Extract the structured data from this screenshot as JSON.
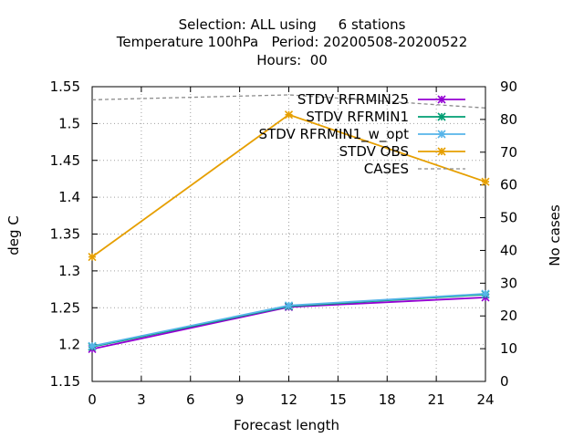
{
  "chart_data": {
    "type": "line",
    "title_lines": [
      "Selection: ALL using     6 stations",
      "Temperature 100hPa   Period: 20200508-20200522",
      "Hours:  00"
    ],
    "xlabel": "Forecast length",
    "ylabel": "deg C",
    "y2label": "No cases",
    "x": [
      0,
      12,
      24
    ],
    "xticks": [
      0,
      3,
      6,
      9,
      12,
      15,
      18,
      21,
      24
    ],
    "xlim": [
      0,
      24
    ],
    "ylim": [
      1.15,
      1.55
    ],
    "yticks": [
      "1.15",
      "1.2",
      "1.25",
      "1.3",
      "1.35",
      "1.4",
      "1.45",
      "1.5",
      "1.55"
    ],
    "y2lim": [
      0,
      90
    ],
    "y2ticks": [
      "0",
      "10",
      "20",
      "30",
      "40",
      "50",
      "60",
      "70",
      "80",
      "90"
    ],
    "grid": true,
    "legend_position": "top-right",
    "series": [
      {
        "name": "STDV RFRMIN25",
        "color": "#9400d3",
        "marker": "cross",
        "axis": "y",
        "values": [
          1.194,
          1.251,
          1.264
        ]
      },
      {
        "name": "STDV RFRMIN1",
        "color": "#009e73",
        "marker": "cross",
        "axis": "y",
        "values": [
          1.197,
          1.252,
          1.268
        ]
      },
      {
        "name": "STDV RFRMIN1_w_opt",
        "color": "#56b4e9",
        "marker": "cross",
        "axis": "y",
        "values": [
          1.198,
          1.253,
          1.269
        ]
      },
      {
        "name": "STDV OBS",
        "color": "#e69f00",
        "marker": "cross",
        "axis": "y",
        "values": [
          1.319,
          1.512,
          1.421
        ]
      },
      {
        "name": "CASES",
        "color": "#8c8c8c",
        "marker": "none",
        "dashed": true,
        "axis": "y2",
        "values": [
          86,
          87.5,
          83.5
        ]
      }
    ]
  }
}
